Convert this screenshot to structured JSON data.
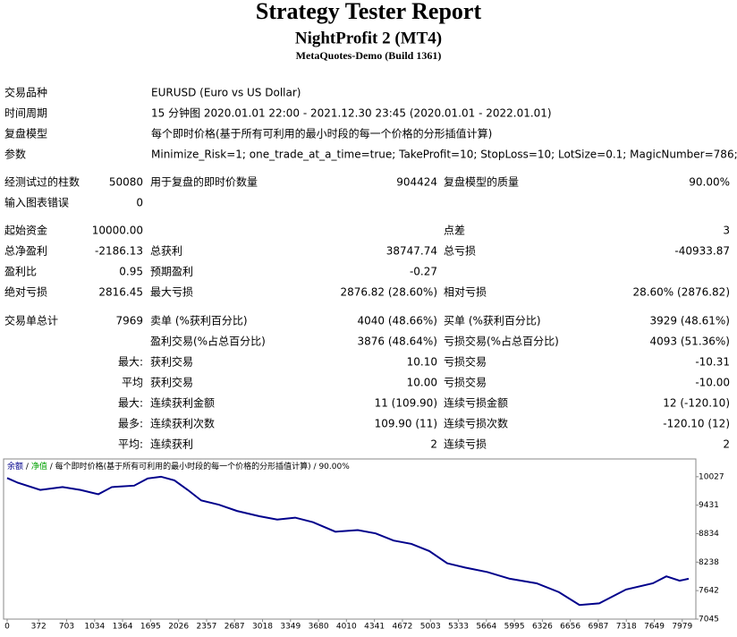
{
  "header": {
    "title": "Strategy Tester Report",
    "subtitle": "NightProfit 2 (MT4)",
    "build": "MetaQuotes-Demo (Build 1361)"
  },
  "info": [
    [
      "交易品种",
      "EURUSD (Euro vs US Dollar)"
    ],
    [
      "时间周期",
      "15 分钟图 2020.01.01 22:00 - 2021.12.30 23:45 (2020.01.01 - 2022.01.01)"
    ],
    [
      "复盘模型",
      "每个即时价格(基于所有可利用的最小时段的每一个价格的分形插值计算)"
    ],
    [
      "参数",
      "Minimize_Risk=1; one_trade_at_a_time=true; TakeProfit=10; StopLoss=10; LotSize=0.1; MagicNumber=786;"
    ]
  ],
  "stats": [
    [
      "经测试过的柱数",
      "50080",
      "用于复盘的即时价数量",
      "904424",
      "复盘模型的质量",
      "90.00%"
    ],
    [
      "输入图表错误",
      "0",
      null,
      null,
      null,
      null
    ],
    [
      "起始资金",
      "10000.00",
      null,
      null,
      "点差",
      "3"
    ],
    [
      "总净盈利",
      "-2186.13",
      "总获利",
      "38747.74",
      "总亏损",
      "-40933.87"
    ],
    [
      "盈利比",
      "0.95",
      "预期盈利",
      "-0.27",
      null,
      null
    ],
    [
      "绝对亏损",
      "2816.45",
      "最大亏损",
      "2876.82 (28.60%)",
      "相对亏损",
      "28.60% (2876.82)"
    ],
    [
      "交易单总计",
      "7969",
      "卖单 (%获利百分比)",
      "4040 (48.66%)",
      "买单 (%获利百分比)",
      "3929 (48.61%)"
    ],
    [
      null,
      null,
      "盈利交易(%占总百分比)",
      "3876 (48.64%)",
      "亏损交易(%占总百分比)",
      "4093 (51.36%)"
    ],
    [
      null,
      "最大:",
      "获利交易",
      "10.10",
      "亏损交易",
      "-10.31"
    ],
    [
      null,
      "平均",
      "获利交易",
      "10.00",
      "亏损交易",
      "-10.00"
    ],
    [
      null,
      "最大:",
      "连续获利金额",
      "11 (109.90)",
      "连续亏损金额",
      "12 (-120.10)"
    ],
    [
      null,
      "最多:",
      "连续获利次数",
      "109.90 (11)",
      "连续亏损次数",
      "-120.10 (12)"
    ],
    [
      null,
      "平均:",
      "连续获利",
      "2",
      "连续亏损",
      "2"
    ]
  ],
  "chart_data": {
    "type": "line",
    "legend_separator": "/",
    "legend_extra": {
      "name": "净值",
      "color": "#00a000"
    },
    "legend_note": "每个即时价格(基于所有可利用的最小时段的每一个价格的分形插值计算)",
    "legend_quality": "90.00%",
    "x": [
      0,
      127,
      391,
      655,
      867,
      1078,
      1237,
      1501,
      1660,
      1818,
      1977,
      2135,
      2294,
      2505,
      2717,
      2981,
      3192,
      3404,
      3615,
      3880,
      4144,
      4355,
      4567,
      4778,
      4989,
      5201,
      5412,
      5677,
      5941,
      6258,
      6522,
      6765,
      6998,
      7315,
      7632,
      7791,
      7949,
      8055
    ],
    "series": [
      {
        "name": "余额",
        "color": "#00008b",
        "values": [
          10000,
          9900,
          9750,
          9810,
          9750,
          9660,
          9810,
          9840,
          9990,
          10027,
          9950,
          9750,
          9530,
          9440,
          9310,
          9200,
          9130,
          9170,
          9075,
          8875,
          8910,
          8840,
          8690,
          8620,
          8470,
          8215,
          8125,
          8030,
          7890,
          7795,
          7610,
          7340,
          7375,
          7665,
          7795,
          7940,
          7850,
          7890
        ]
      }
    ],
    "xlim": [
      0,
      8140
    ],
    "ylim": [
      7045,
      10380
    ],
    "xticks": [
      0,
      372,
      703,
      1034,
      1364,
      1695,
      2026,
      2357,
      2687,
      3018,
      3349,
      3680,
      4010,
      4341,
      4672,
      5003,
      5333,
      5664,
      5995,
      6326,
      6656,
      6987,
      7318,
      7649,
      7979
    ],
    "yticks": [
      10027,
      9431,
      8834,
      8238,
      7642,
      7045
    ]
  }
}
